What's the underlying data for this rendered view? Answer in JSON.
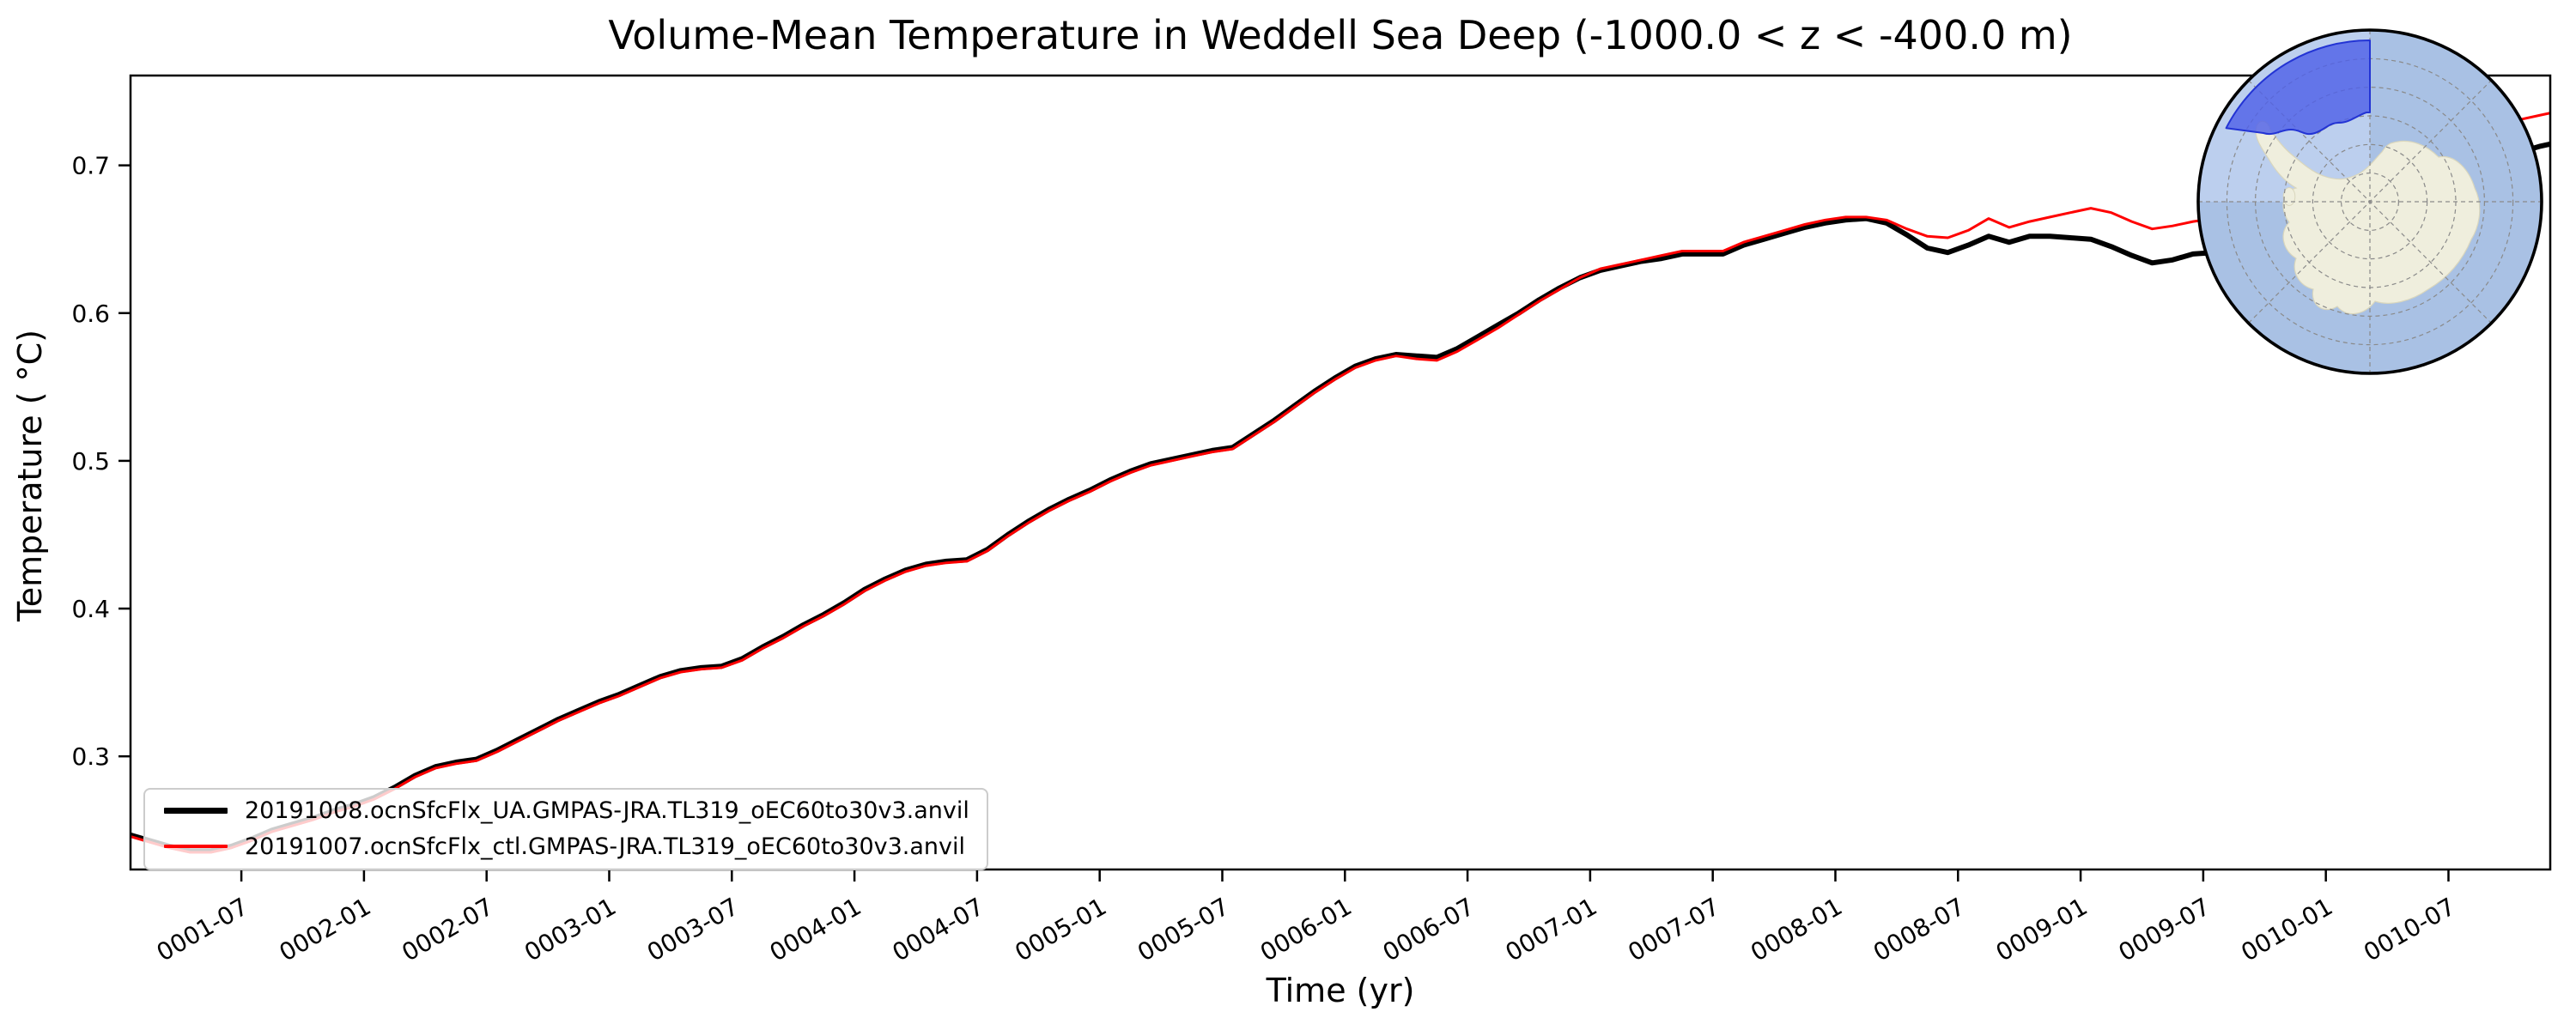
{
  "chart_data": {
    "type": "line",
    "title": "Volume-Mean Temperature in Weddell Sea Deep (-1000.0 < z < -400.0 m)",
    "xlabel": "Time (yr)",
    "ylabel": "Temperature ( °C)",
    "grid": false,
    "legend_position": "lower left",
    "xlim": [
      1.048,
      10.915
    ],
    "ylim": [
      0.2234,
      0.7608
    ],
    "x_unit": "year-month, monthly means from 0001-01 to 0010-12",
    "x_ticks": [
      {
        "value": 1.5,
        "label": "0001-07"
      },
      {
        "value": 2.0,
        "label": "0002-01"
      },
      {
        "value": 2.5,
        "label": "0002-07"
      },
      {
        "value": 3.0,
        "label": "0003-01"
      },
      {
        "value": 3.5,
        "label": "0003-07"
      },
      {
        "value": 4.0,
        "label": "0004-01"
      },
      {
        "value": 4.5,
        "label": "0004-07"
      },
      {
        "value": 5.0,
        "label": "0005-01"
      },
      {
        "value": 5.5,
        "label": "0005-07"
      },
      {
        "value": 6.0,
        "label": "0006-01"
      },
      {
        "value": 6.5,
        "label": "0006-07"
      },
      {
        "value": 7.0,
        "label": "0007-01"
      },
      {
        "value": 7.5,
        "label": "0007-07"
      },
      {
        "value": 8.0,
        "label": "0008-01"
      },
      {
        "value": 8.5,
        "label": "0008-07"
      },
      {
        "value": 9.0,
        "label": "0009-01"
      },
      {
        "value": 9.5,
        "label": "0009-07"
      },
      {
        "value": 10.0,
        "label": "0010-01"
      },
      {
        "value": 10.5,
        "label": "0010-07"
      }
    ],
    "y_ticks": [
      {
        "value": 0.3,
        "label": "0.3"
      },
      {
        "value": 0.4,
        "label": "0.4"
      },
      {
        "value": 0.5,
        "label": "0.5"
      },
      {
        "value": 0.6,
        "label": "0.6"
      },
      {
        "value": 0.7,
        "label": "0.7"
      }
    ],
    "series": [
      {
        "name": "20191008.ocnSfcFlx_UA.GMPAS-JRA.TL319_oEC60to30v3.anvil",
        "color": "#000000",
        "linewidth": 6,
        "start_year": 1,
        "values": [
          0.247,
          0.243,
          0.239,
          0.236,
          0.236,
          0.239,
          0.244,
          0.25,
          0.254,
          0.258,
          0.263,
          0.267,
          0.272,
          0.279,
          0.287,
          0.293,
          0.296,
          0.298,
          0.304,
          0.311,
          0.318,
          0.325,
          0.331,
          0.337,
          0.342,
          0.348,
          0.354,
          0.358,
          0.36,
          0.361,
          0.366,
          0.374,
          0.381,
          0.389,
          0.396,
          0.404,
          0.413,
          0.42,
          0.426,
          0.43,
          0.432,
          0.433,
          0.44,
          0.45,
          0.459,
          0.467,
          0.474,
          0.48,
          0.487,
          0.493,
          0.498,
          0.501,
          0.504,
          0.507,
          0.509,
          0.518,
          0.527,
          0.537,
          0.547,
          0.556,
          0.564,
          0.569,
          0.572,
          0.571,
          0.57,
          0.576,
          0.584,
          0.592,
          0.6,
          0.609,
          0.617,
          0.624,
          0.629,
          0.632,
          0.635,
          0.637,
          0.64,
          0.64,
          0.64,
          0.646,
          0.65,
          0.654,
          0.658,
          0.661,
          0.663,
          0.664,
          0.661,
          0.653,
          0.644,
          0.641,
          0.646,
          0.652,
          0.648,
          0.652,
          0.652,
          0.651,
          0.65,
          0.645,
          0.639,
          0.634,
          0.636,
          0.64,
          0.641,
          0.643,
          0.645,
          0.648,
          0.652,
          0.656,
          0.661,
          0.666,
          0.671,
          0.677,
          0.683,
          0.689,
          0.695,
          0.7,
          0.705,
          0.709,
          0.713,
          0.716
        ]
      },
      {
        "name": "20191007.ocnSfcFlx_ctl.GMPAS-JRA.TL319_oEC60to30v3.anvil",
        "color": "#ff0000",
        "linewidth": 3,
        "start_year": 1,
        "values": [
          0.246,
          0.242,
          0.238,
          0.235,
          0.235,
          0.238,
          0.243,
          0.249,
          0.253,
          0.257,
          0.262,
          0.266,
          0.271,
          0.278,
          0.286,
          0.292,
          0.295,
          0.297,
          0.303,
          0.31,
          0.317,
          0.324,
          0.33,
          0.336,
          0.341,
          0.347,
          0.353,
          0.357,
          0.359,
          0.36,
          0.365,
          0.373,
          0.38,
          0.388,
          0.395,
          0.403,
          0.412,
          0.419,
          0.425,
          0.429,
          0.431,
          0.432,
          0.439,
          0.449,
          0.458,
          0.466,
          0.473,
          0.479,
          0.486,
          0.492,
          0.497,
          0.5,
          0.503,
          0.506,
          0.508,
          0.517,
          0.526,
          0.536,
          0.546,
          0.555,
          0.563,
          0.568,
          0.571,
          0.569,
          0.568,
          0.574,
          0.582,
          0.59,
          0.599,
          0.608,
          0.616,
          0.624,
          0.63,
          0.633,
          0.636,
          0.639,
          0.642,
          0.642,
          0.642,
          0.648,
          0.652,
          0.656,
          0.66,
          0.663,
          0.665,
          0.665,
          0.663,
          0.657,
          0.652,
          0.651,
          0.656,
          0.664,
          0.658,
          0.662,
          0.665,
          0.668,
          0.671,
          0.668,
          0.662,
          0.657,
          0.659,
          0.662,
          0.664,
          0.665,
          0.667,
          0.67,
          0.674,
          0.679,
          0.684,
          0.69,
          0.696,
          0.702,
          0.708,
          0.714,
          0.719,
          0.724,
          0.728,
          0.731,
          0.734,
          0.737
        ]
      }
    ]
  },
  "inset_map": {
    "description": "South polar stereographic map of Antarctica with Weddell Sea region highlighted",
    "highlight_region": "Weddell Sea",
    "colors": {
      "ocean": "#a9c1e4",
      "ocean_light_sector": "#bccfee",
      "land": "#efeedd",
      "land_edge": "#d9d6bd",
      "region_fill": "#4f60e8",
      "region_edge": "#2334d4",
      "graticule": "#8a8a8a",
      "border": "#000000"
    }
  }
}
